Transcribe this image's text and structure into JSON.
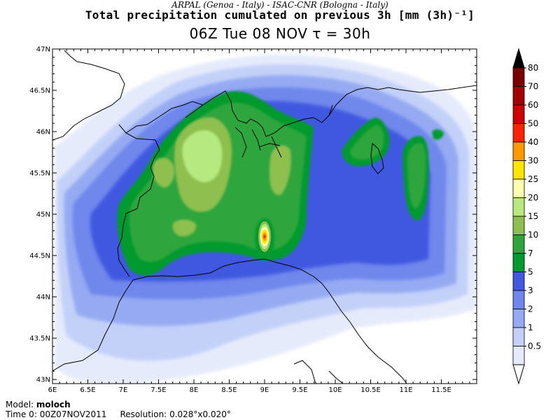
{
  "header": {
    "organization": "ARPAL (Genoa - Italy)  -  ISAC-CNR (Bologna - Italy)",
    "title": "Total precipitation cumulated on previous 3h [mm (3h)⁻¹]",
    "subtitle": "06Z Tue 08 NOV  τ = 30h"
  },
  "map": {
    "lon_range": [
      6,
      12
    ],
    "lat_range": [
      42.95,
      47
    ],
    "lon_ticks": [
      "6E",
      "6.5E",
      "7E",
      "7.5E",
      "8E",
      "8.5E",
      "9E",
      "9.5E",
      "10E",
      "10.5E",
      "11E",
      "11.5E"
    ],
    "lat_ticks": [
      "43N",
      "43.5N",
      "44N",
      "44.5N",
      "45N",
      "45.5N",
      "46N",
      "46.5N",
      "47N"
    ],
    "field": "precipitation",
    "precip_maxima": [
      {
        "lon": 8.95,
        "lat": 44.68,
        "value_range": "40-50"
      },
      {
        "lon": 8.35,
        "lat": 45.5,
        "value_range": "15-20"
      },
      {
        "lon": 7.2,
        "lat": 45.4,
        "value_range": "15-20"
      },
      {
        "lon": 11.1,
        "lat": 45.7,
        "value_range": "15-20"
      }
    ]
  },
  "legend": {
    "levels": [
      "80",
      "70",
      "60",
      "50",
      "40",
      "30",
      "25",
      "20",
      "15",
      "10",
      "7",
      "5",
      "3",
      "2",
      "1",
      "0.5"
    ],
    "colors": [
      "#7a0000",
      "#a50000",
      "#d00000",
      "#ff2400",
      "#ff9900",
      "#ffe600",
      "#ffffb0",
      "#b6ea80",
      "#8ebf50",
      "#2da53c",
      "#009a2e",
      "#4158e0",
      "#6f87ec",
      "#95aaf2",
      "#c3d1f9",
      "#e6ebfc"
    ]
  },
  "footer": {
    "model_label": "Model:",
    "model_value": "moloch",
    "time_label": "Time 0:",
    "time_value": "00Z07NOV2011",
    "resolution_label": "Resolution:",
    "resolution_value": "0.028°x0.020°"
  }
}
